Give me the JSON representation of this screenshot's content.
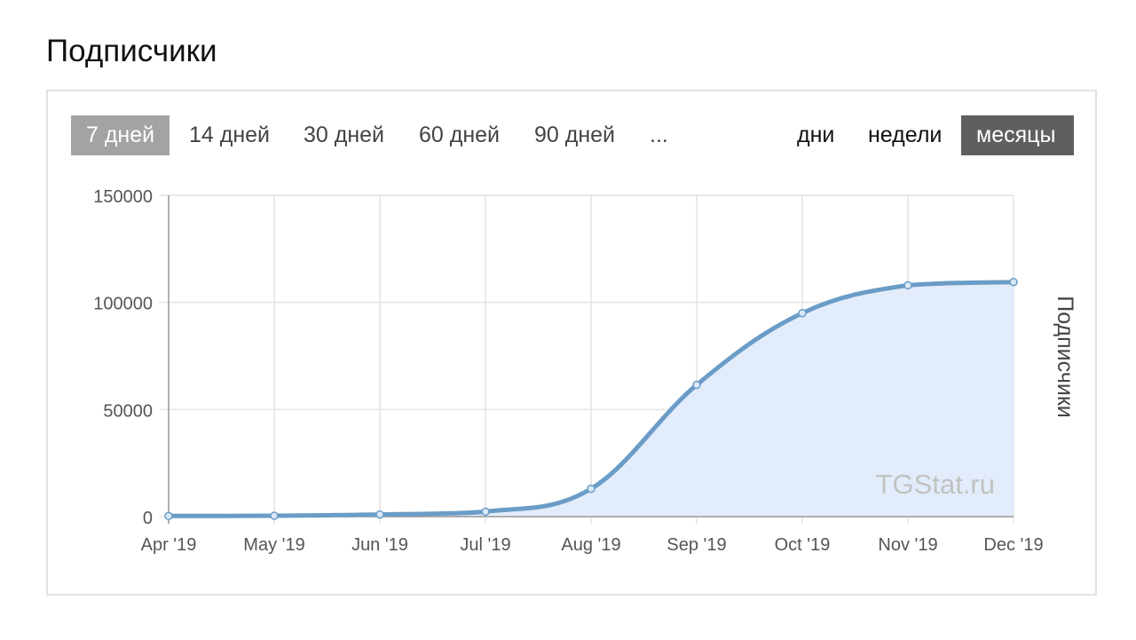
{
  "page": {
    "title": "Подписчики"
  },
  "range_tabs": [
    {
      "label": "7 дней",
      "active": true
    },
    {
      "label": "14 дней",
      "active": false
    },
    {
      "label": "30 дней",
      "active": false
    },
    {
      "label": "60 дней",
      "active": false
    },
    {
      "label": "90 дней",
      "active": false
    },
    {
      "label": "...",
      "active": false
    }
  ],
  "group_tabs": [
    {
      "label": "дни",
      "active": false
    },
    {
      "label": "недели",
      "active": false
    },
    {
      "label": "месяцы",
      "active": true
    }
  ],
  "watermark": "TGStat.ru",
  "colors": {
    "line": "#6a9cc7",
    "area": "#e3ecfa",
    "active_range_bg": "#a3a3a3",
    "active_group_bg": "#5f5f5f"
  },
  "chart_data": {
    "type": "area",
    "title": "",
    "xlabel": "",
    "ylabel": "Подписчики",
    "x": [
      "Apr '19",
      "May '19",
      "Jun '19",
      "Jul '19",
      "Aug '19",
      "Sep '19",
      "Oct '19",
      "Nov '19",
      "Dec '19"
    ],
    "series": [
      {
        "values": [
          300,
          400,
          1000,
          2300,
          13000,
          61500,
          95000,
          108000,
          109500
        ]
      }
    ],
    "ylim": [
      0,
      150000
    ],
    "yticks": [
      "0",
      "50000",
      "100000",
      "150000"
    ],
    "grid": true,
    "legend": "none"
  }
}
